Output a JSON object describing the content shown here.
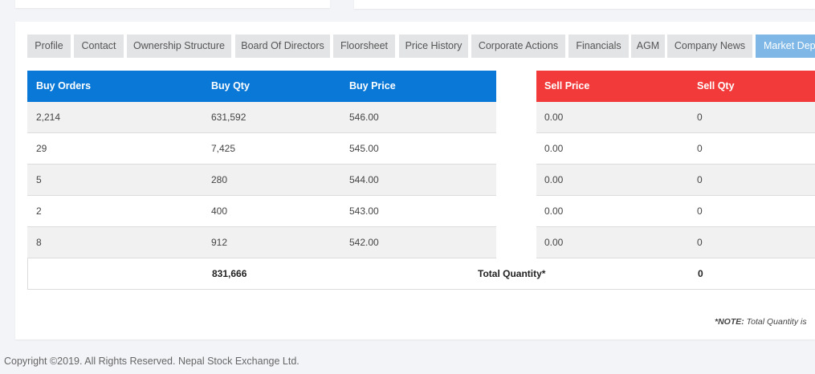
{
  "tabs": [
    {
      "label": "Profile"
    },
    {
      "label": "Contact"
    },
    {
      "label": "Ownership Structure"
    },
    {
      "label": "Board Of Directors"
    },
    {
      "label": "Floorsheet"
    },
    {
      "label": "Price History"
    },
    {
      "label": "Corporate Actions"
    },
    {
      "label": "Financials"
    },
    {
      "label": "AGM"
    },
    {
      "label": "Company News"
    },
    {
      "label": "Market Depth"
    }
  ],
  "active_tab": "Market Depth",
  "table": {
    "headers": {
      "buy_orders": "Buy Orders",
      "buy_qty": "Buy Qty",
      "buy_price": "Buy Price",
      "sell_price": "Sell Price",
      "sell_qty": "Sell Qty"
    },
    "rows": [
      {
        "buy_orders": "2,214",
        "buy_qty": "631,592",
        "buy_price": "546.00",
        "sell_price": "0.00",
        "sell_qty": "0"
      },
      {
        "buy_orders": "29",
        "buy_qty": "7,425",
        "buy_price": "545.00",
        "sell_price": "0.00",
        "sell_qty": "0"
      },
      {
        "buy_orders": "5",
        "buy_qty": "280",
        "buy_price": "544.00",
        "sell_price": "0.00",
        "sell_qty": "0"
      },
      {
        "buy_orders": "2",
        "buy_qty": "400",
        "buy_price": "543.00",
        "sell_price": "0.00",
        "sell_qty": "0"
      },
      {
        "buy_orders": "8",
        "buy_qty": "912",
        "buy_price": "542.00",
        "sell_price": "0.00",
        "sell_qty": "0"
      }
    ],
    "total": {
      "buy_qty": "831,666",
      "label": "Total Quantity*",
      "sell_qty": "0"
    }
  },
  "note": {
    "prefix": "*NOTE:",
    "text": "Total Quantity is"
  },
  "footer": "Copyright ©2019. All Rights Reserved. Nepal Stock Exchange Ltd.",
  "colors": {
    "buy_header": "#0a78d6",
    "sell_header": "#f23a3a",
    "active_tab": "#7fb8e6"
  }
}
